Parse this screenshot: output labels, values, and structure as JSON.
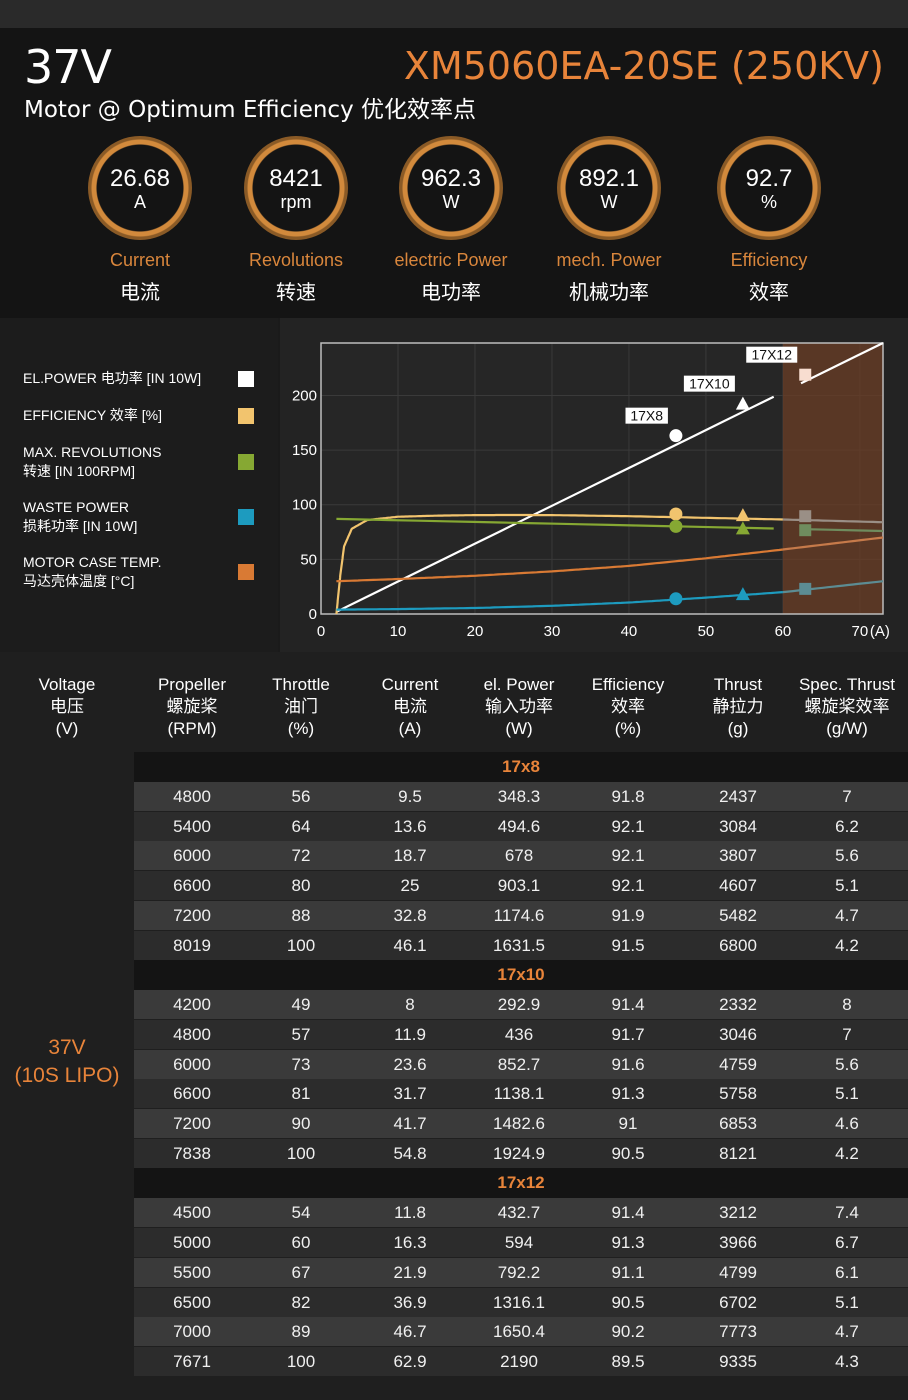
{
  "header": {
    "voltage": "37V",
    "model": "XM5060EA-20SE (250KV)",
    "subtitle": "Motor @ Optimum Efficiency  优化效率点"
  },
  "gauges": [
    {
      "value": "26.68",
      "unit": "A",
      "en": "Current",
      "cn": "电流"
    },
    {
      "value": "8421",
      "unit": "rpm",
      "en": "Revolutions",
      "cn": "转速"
    },
    {
      "value": "962.3",
      "unit": "W",
      "en": "electric Power",
      "cn": "电功率"
    },
    {
      "value": "892.1",
      "unit": "W",
      "en": "mech. Power",
      "cn": "机械功率"
    },
    {
      "value": "92.7",
      "unit": "%",
      "en": "Efficiency",
      "cn": "效率"
    }
  ],
  "legend": [
    {
      "line1": "EL.POWER 电功率 [IN 10W]",
      "line2": "",
      "color": "#ffffff"
    },
    {
      "line1": "EFFICIENCY 效率 [%]",
      "line2": "",
      "color": "#f2c46e"
    },
    {
      "line1": "MAX. REVOLUTIONS",
      "line2": "转速 [IN 100RPM]",
      "color": "#86a833"
    },
    {
      "line1": "WASTE POWER",
      "line2": "损耗功率 [IN 10W]",
      "color": "#1d9bbf"
    },
    {
      "line1": "MOTOR CASE TEMP.",
      "line2": "马达壳体温度 [°C]",
      "color": "#d97a34"
    }
  ],
  "chart_data": {
    "type": "line",
    "xlabel": "(A)",
    "xlim": [
      0,
      73
    ],
    "ylim": [
      0,
      248
    ],
    "x_ticks": [
      0,
      10,
      20,
      30,
      40,
      50,
      60,
      70
    ],
    "x_tick_labels": [
      "0",
      "10",
      "20",
      "30",
      "40",
      "50",
      "60",
      "70"
    ],
    "y_ticks": [
      0,
      50,
      100,
      150,
      200
    ],
    "y_tick_labels": [
      "0",
      "50",
      "100",
      "150",
      "200"
    ],
    "shaded_region": [
      60,
      73
    ],
    "series": [
      {
        "key": "el_power",
        "color": "#ffffff",
        "x": [
          2,
          73
        ],
        "y": [
          2,
          248
        ]
      },
      {
        "key": "efficiency",
        "color": "#f2c46e",
        "x": [
          2,
          2.5,
          3,
          4,
          6,
          10,
          15,
          20,
          25,
          30,
          40,
          50,
          60,
          73
        ],
        "y": [
          0,
          35,
          62,
          78,
          86,
          89,
          90,
          90.5,
          90.6,
          90.5,
          89.5,
          88,
          86.5,
          84
        ]
      },
      {
        "key": "revolutions",
        "color": "#86a833",
        "x": [
          2,
          73
        ],
        "y": [
          87,
          76
        ]
      },
      {
        "key": "waste_power",
        "color": "#1d9bbf",
        "x": [
          2,
          10,
          20,
          30,
          40,
          50,
          60,
          73
        ],
        "y": [
          4,
          4.5,
          5.5,
          7.5,
          10.5,
          15,
          20,
          30
        ]
      },
      {
        "key": "case_temp",
        "color": "#d97a34",
        "x": [
          2,
          10,
          20,
          30,
          40,
          50,
          60,
          73
        ],
        "y": [
          30,
          32,
          35,
          39,
          44,
          51,
          59,
          70
        ]
      }
    ],
    "propeller_points": [
      {
        "label": "17X8",
        "x": 46.1,
        "marker": "circle",
        "el_power": 163.2,
        "efficiency": 91.5,
        "revolutions": 80.2,
        "waste_power": 13.9
      },
      {
        "label": "17X10",
        "x": 54.8,
        "marker": "triangle",
        "el_power": 192.5,
        "efficiency": 90.5,
        "revolutions": 78.4,
        "waste_power": 18.2
      },
      {
        "label": "17X12",
        "x": 62.9,
        "marker": "square",
        "el_power": 219.0,
        "efficiency": 89.5,
        "revolutions": 76.7,
        "waste_power": 23.0
      }
    ]
  },
  "table": {
    "columns": [
      {
        "en": "Voltage",
        "cn": "电压",
        "unit": "(V)"
      },
      {
        "en": "Propeller",
        "cn": "螺旋桨",
        "unit": "(RPM)"
      },
      {
        "en": "Throttle",
        "cn": "油门",
        "unit": "(%)"
      },
      {
        "en": "Current",
        "cn": "电流",
        "unit": "(A)"
      },
      {
        "en": "el. Power",
        "cn": "输入功率",
        "unit": "(W)"
      },
      {
        "en": "Efficiency",
        "cn": "效率",
        "unit": "(%)"
      },
      {
        "en": "Thrust",
        "cn": "静拉力",
        "unit": "(g)"
      },
      {
        "en": "Spec. Thrust",
        "cn": "螺旋桨效率",
        "unit": "(g/W)"
      }
    ],
    "side_label": {
      "line1": "37V",
      "line2": "(10S LIPO)"
    },
    "groups": [
      {
        "name": "17x8",
        "rows": [
          [
            "4800",
            "56",
            "9.5",
            "348.3",
            "91.8",
            "2437",
            "7"
          ],
          [
            "5400",
            "64",
            "13.6",
            "494.6",
            "92.1",
            "3084",
            "6.2"
          ],
          [
            "6000",
            "72",
            "18.7",
            "678",
            "92.1",
            "3807",
            "5.6"
          ],
          [
            "6600",
            "80",
            "25",
            "903.1",
            "92.1",
            "4607",
            "5.1"
          ],
          [
            "7200",
            "88",
            "32.8",
            "1174.6",
            "91.9",
            "5482",
            "4.7"
          ],
          [
            "8019",
            "100",
            "46.1",
            "1631.5",
            "91.5",
            "6800",
            "4.2"
          ]
        ]
      },
      {
        "name": "17x10",
        "rows": [
          [
            "4200",
            "49",
            "8",
            "292.9",
            "91.4",
            "2332",
            "8"
          ],
          [
            "4800",
            "57",
            "11.9",
            "436",
            "91.7",
            "3046",
            "7"
          ],
          [
            "6000",
            "73",
            "23.6",
            "852.7",
            "91.6",
            "4759",
            "5.6"
          ],
          [
            "6600",
            "81",
            "31.7",
            "1138.1",
            "91.3",
            "5758",
            "5.1"
          ],
          [
            "7200",
            "90",
            "41.7",
            "1482.6",
            "91",
            "6853",
            "4.6"
          ],
          [
            "7838",
            "100",
            "54.8",
            "1924.9",
            "90.5",
            "8121",
            "4.2"
          ]
        ]
      },
      {
        "name": "17x12",
        "rows": [
          [
            "4500",
            "54",
            "11.8",
            "432.7",
            "91.4",
            "3212",
            "7.4"
          ],
          [
            "5000",
            "60",
            "16.3",
            "594",
            "91.3",
            "3966",
            "6.7"
          ],
          [
            "5500",
            "67",
            "21.9",
            "792.2",
            "91.1",
            "4799",
            "6.1"
          ],
          [
            "6500",
            "82",
            "36.9",
            "1316.1",
            "90.5",
            "6702",
            "5.1"
          ],
          [
            "7000",
            "89",
            "46.7",
            "1650.4",
            "90.2",
            "7773",
            "4.7"
          ],
          [
            "7671",
            "100",
            "62.9",
            "2190",
            "89.5",
            "9335",
            "4.3"
          ]
        ]
      }
    ]
  }
}
